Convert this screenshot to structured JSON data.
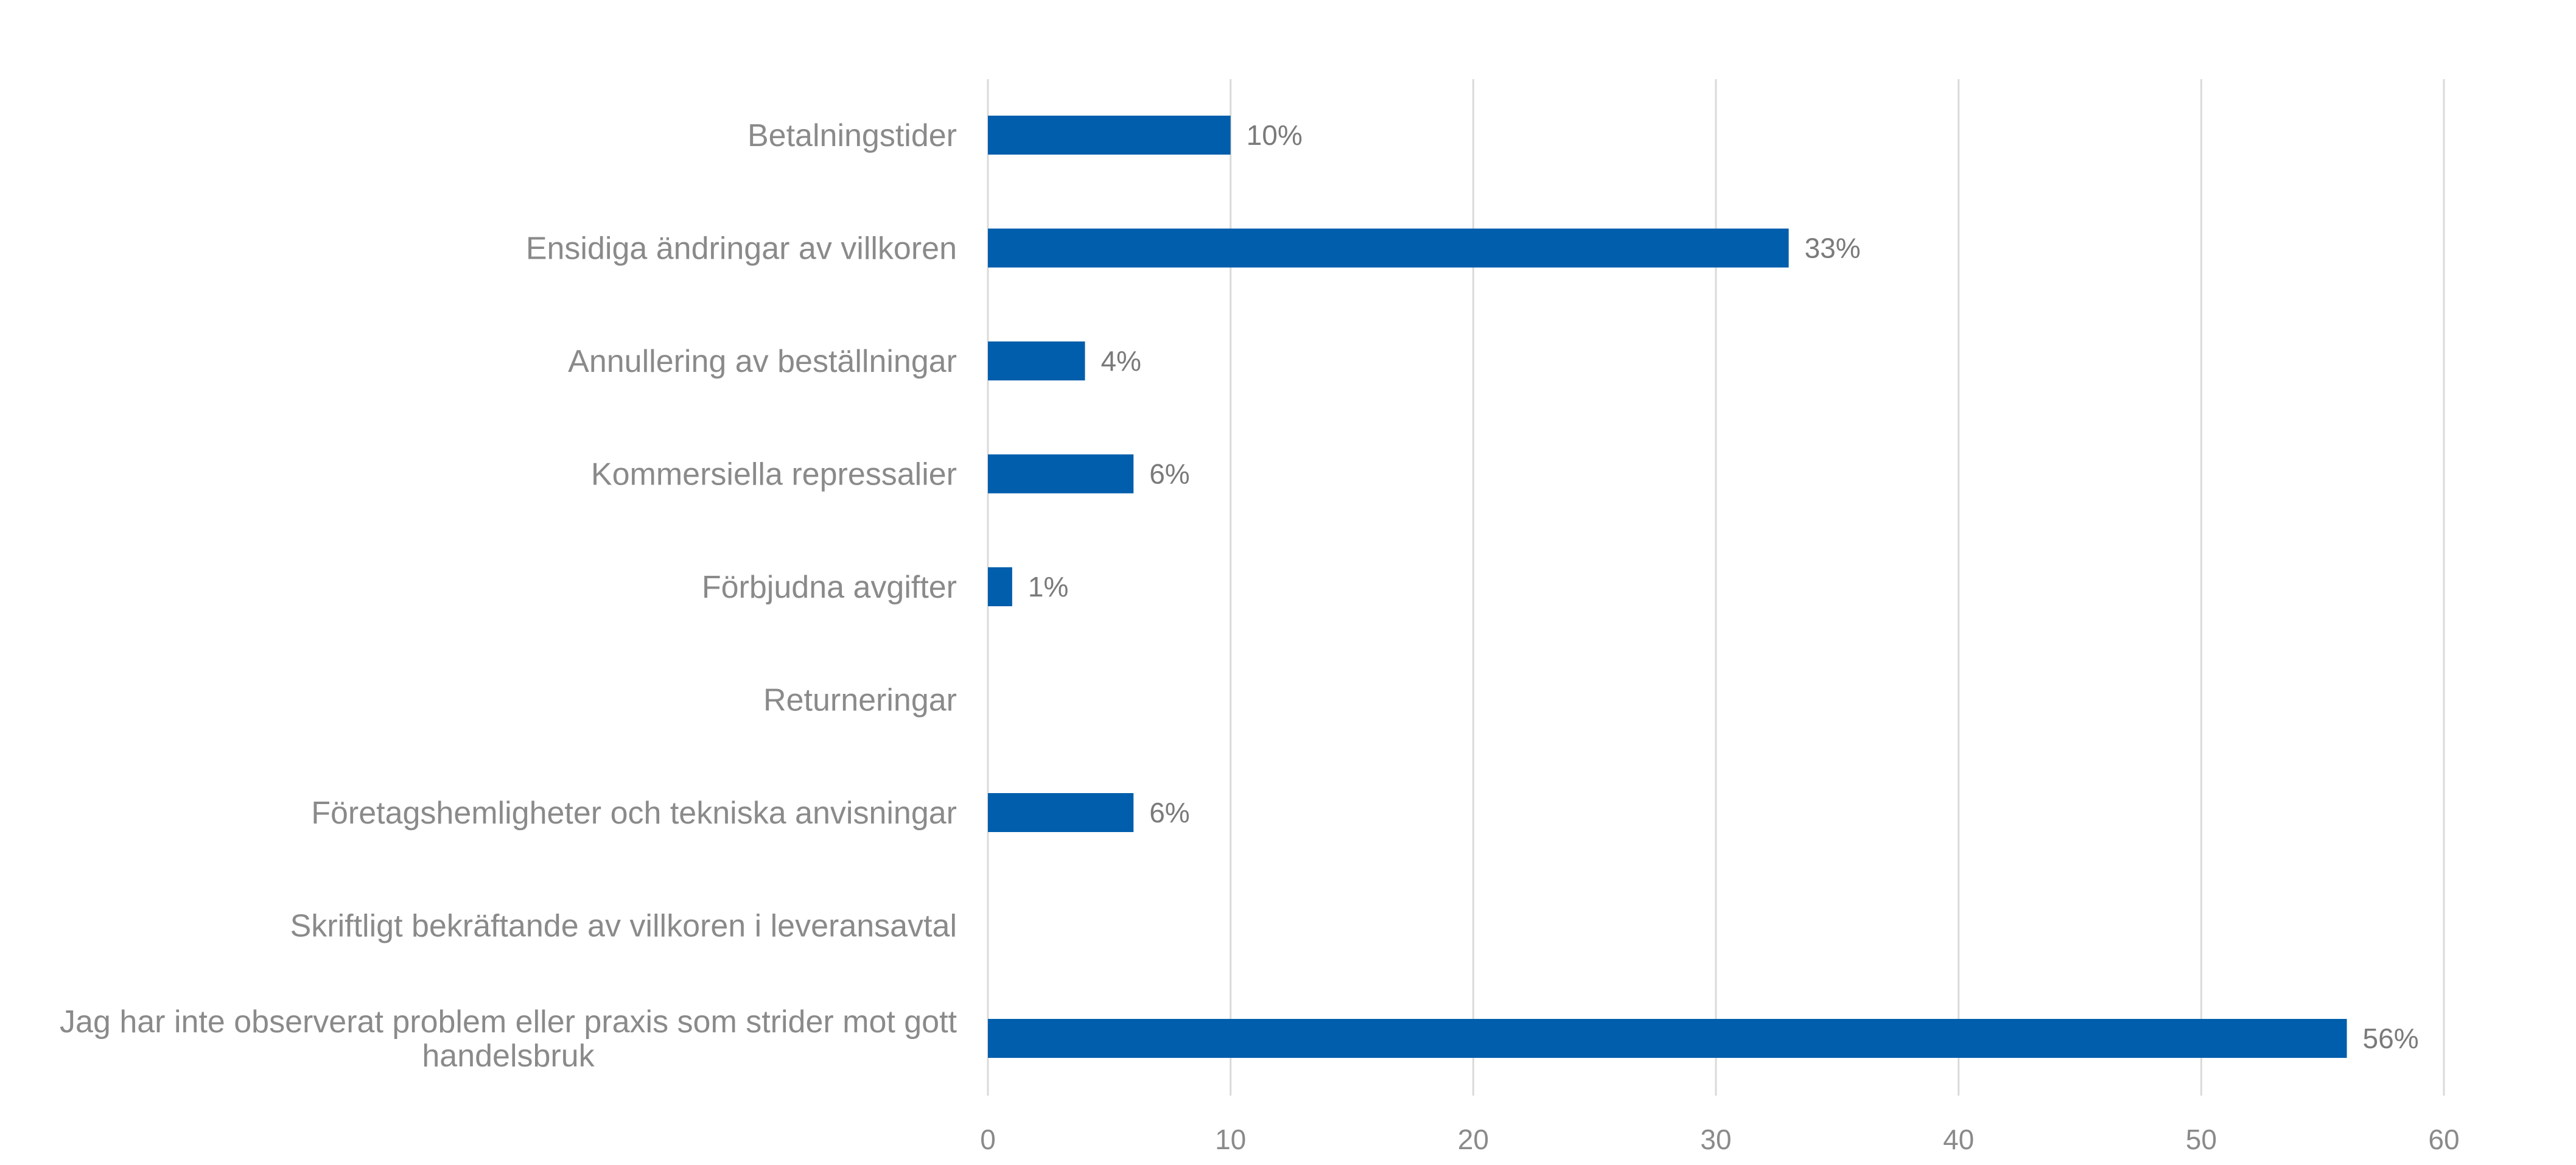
{
  "chart_data": {
    "type": "bar",
    "orientation": "horizontal",
    "categories": [
      "Betalningstider",
      "Ensidiga ändringar av villkoren",
      "Annullering av beställningar",
      "Kommersiella repressalier",
      "Förbjudna avgifter",
      "Returneringar",
      "Företagshemligheter och tekniska anvisningar",
      "Skriftligt bekräftande av villkoren i leveransavtal",
      "Jag har inte observerat problem eller praxis som strider mot gott handelsbruk"
    ],
    "category_label_lines": [
      [
        "Betalningstider"
      ],
      [
        "Ensidiga ändringar av villkoren"
      ],
      [
        "Annullering av beställningar"
      ],
      [
        "Kommersiella repressalier"
      ],
      [
        "Förbjudna avgifter"
      ],
      [
        "Returneringar"
      ],
      [
        "Företagshemligheter och tekniska anvisningar"
      ],
      [
        "Skriftligt bekräftande av villkoren i leveransavtal"
      ],
      [
        "Jag har inte observerat problem eller praxis som strider mot gott",
        "handelsbruk"
      ]
    ],
    "values": [
      10,
      33,
      4,
      6,
      1,
      null,
      6,
      null,
      56
    ],
    "data_labels": [
      "10%",
      "33%",
      "4%",
      "6%",
      "1%",
      "",
      "6%",
      "",
      "56%"
    ],
    "xlim": [
      0,
      60
    ],
    "xticks": [
      0,
      10,
      20,
      30,
      40,
      50,
      60
    ],
    "xtick_labels": [
      "0",
      "10",
      "20",
      "30",
      "40",
      "50",
      "60"
    ],
    "grid": true,
    "legend": "none",
    "title": "",
    "xlabel": "",
    "ylabel": "",
    "bar_color": "#005eac",
    "grid_color": "#dadada",
    "label_color": "#8a8a8a"
  }
}
